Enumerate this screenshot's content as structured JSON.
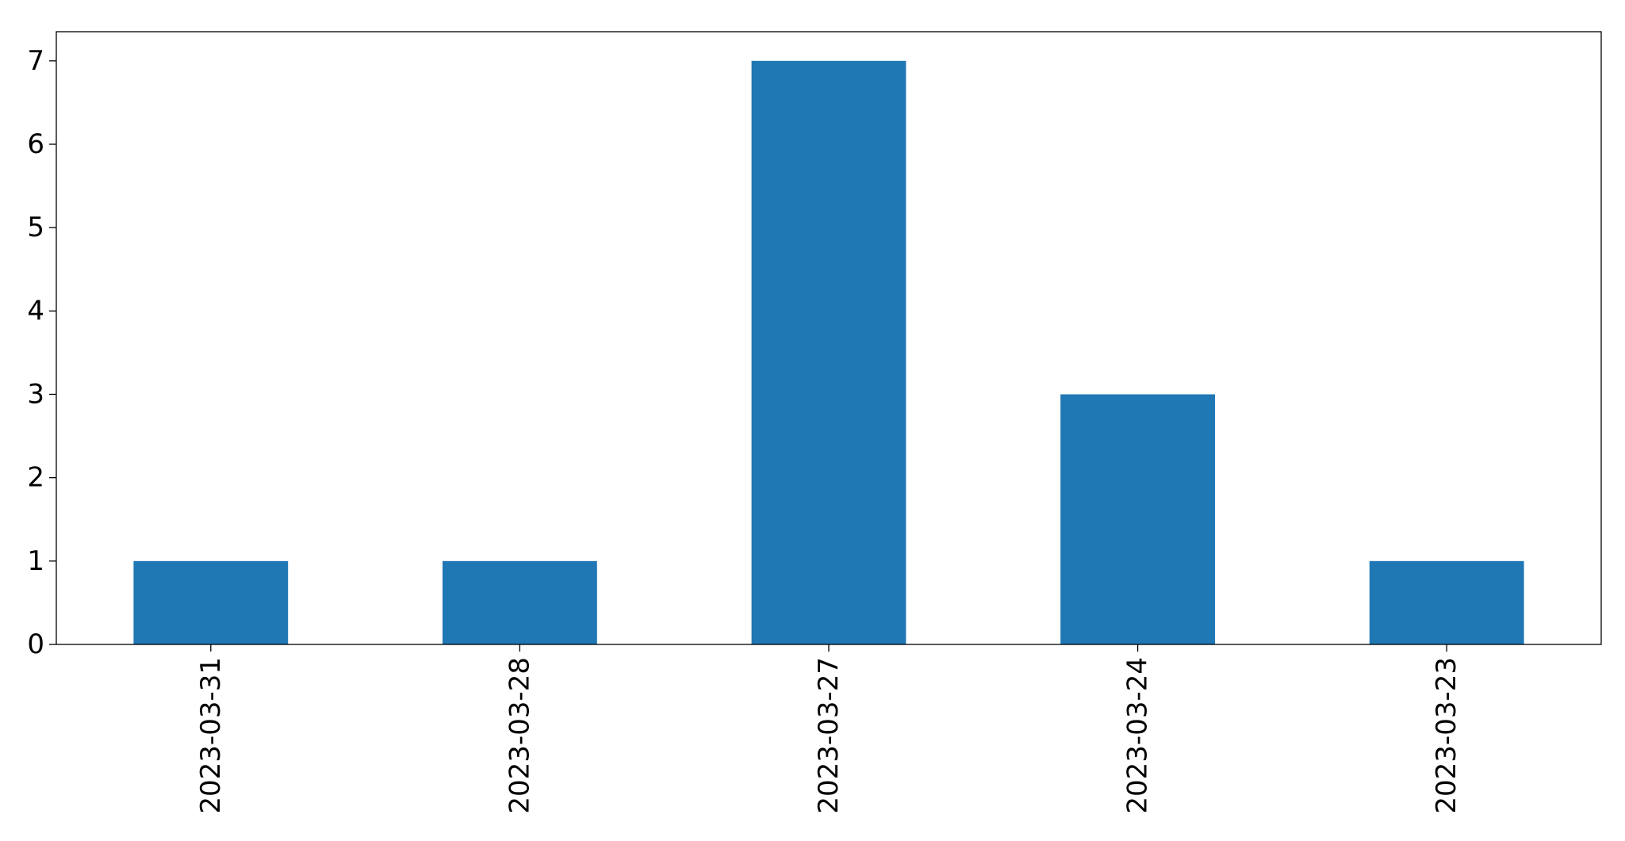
{
  "chart_data": {
    "type": "bar",
    "title": "",
    "xlabel": "",
    "ylabel": "",
    "categories": [
      "2023-03-31",
      "2023-03-28",
      "2023-03-27",
      "2023-03-24",
      "2023-03-23"
    ],
    "values": [
      1,
      1,
      7,
      3,
      1
    ],
    "ylim": [
      0,
      7.35
    ],
    "yticks": [
      0,
      1,
      2,
      3,
      4,
      5,
      6,
      7
    ],
    "grid": false,
    "legend": "none",
    "bar_color": "#1f77b4",
    "tick_label_rotation": "vertical"
  }
}
